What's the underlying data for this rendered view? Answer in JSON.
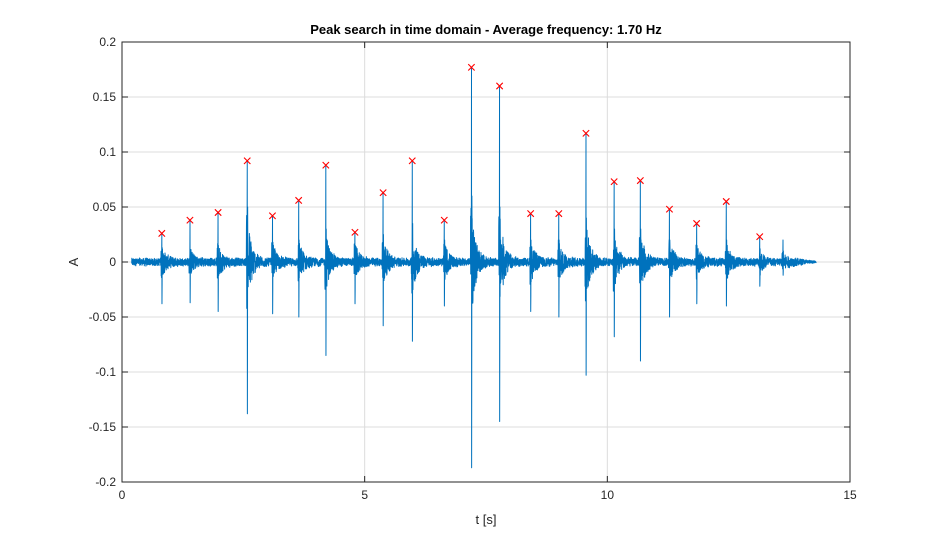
{
  "chart_data": {
    "type": "line",
    "title": "Peak search in time domain - Average frequency: 1.70 Hz",
    "xlabel": "t [s]",
    "ylabel": "A",
    "xlim": [
      0,
      15
    ],
    "ylim": [
      -0.2,
      0.2
    ],
    "grid": true,
    "xticks": [
      0,
      5,
      10,
      15
    ],
    "xtick_labels": [
      "0",
      "5",
      "10",
      "15"
    ],
    "yticks": [
      -0.2,
      -0.15,
      -0.1,
      -0.05,
      0,
      0.05,
      0.1,
      0.15,
      0.2
    ],
    "ytick_labels": [
      "-0.2",
      "-0.15",
      "-0.1",
      "-0.05",
      "0",
      "0.05",
      "0.1",
      "0.15",
      "0.2"
    ],
    "colors": {
      "signal": "#0072BD",
      "peaks": "#FF0000",
      "grid": "#DCDCDC",
      "axes": "#262626"
    },
    "series": [
      {
        "name": "signal",
        "kind": "line",
        "description_x_range": [
          0.2,
          14.3
        ],
        "bursts": [
          {
            "t": 0.82,
            "up": 0.026,
            "down": -0.038,
            "extra_up": 0.013,
            "extra_down": -0.02
          },
          {
            "t": 1.4,
            "up": 0.038,
            "down": -0.037,
            "extra_up": 0.01,
            "extra_down": -0.02
          },
          {
            "t": 1.98,
            "up": 0.045,
            "down": -0.045,
            "extra_up": 0.015,
            "extra_down": -0.025
          },
          {
            "t": 2.58,
            "up": 0.092,
            "down": -0.138,
            "extra_up": 0.05,
            "extra_down": -0.067
          },
          {
            "t": 3.1,
            "up": 0.042,
            "down": -0.047,
            "extra_up": 0.018,
            "extra_down": -0.025
          },
          {
            "t": 3.64,
            "up": 0.056,
            "down": -0.05,
            "extra_up": 0.02,
            "extra_down": -0.03
          },
          {
            "t": 4.2,
            "up": 0.088,
            "down": -0.085,
            "extra_up": 0.03,
            "extra_down": -0.04
          },
          {
            "t": 4.8,
            "up": 0.027,
            "down": -0.038,
            "extra_up": 0.015,
            "extra_down": -0.025
          },
          {
            "t": 5.38,
            "up": 0.063,
            "down": -0.058,
            "extra_up": 0.025,
            "extra_down": -0.035
          },
          {
            "t": 5.98,
            "up": 0.092,
            "down": -0.072,
            "extra_up": 0.035,
            "extra_down": -0.045
          },
          {
            "t": 6.64,
            "up": 0.038,
            "down": -0.04,
            "extra_up": 0.02,
            "extra_down": -0.025
          },
          {
            "t": 7.2,
            "up": 0.177,
            "down": -0.187,
            "extra_up": 0.06,
            "extra_down": -0.08
          },
          {
            "t": 7.78,
            "up": 0.16,
            "down": -0.145,
            "extra_up": 0.05,
            "extra_down": -0.07
          },
          {
            "t": 8.42,
            "up": 0.044,
            "down": -0.045,
            "extra_up": 0.02,
            "extra_down": -0.03
          },
          {
            "t": 9.0,
            "up": 0.044,
            "down": -0.05,
            "extra_up": 0.02,
            "extra_down": -0.03
          },
          {
            "t": 9.56,
            "up": 0.117,
            "down": -0.103,
            "extra_up": 0.04,
            "extra_down": -0.06
          },
          {
            "t": 10.14,
            "up": 0.073,
            "down": -0.068,
            "extra_up": 0.03,
            "extra_down": -0.04
          },
          {
            "t": 10.68,
            "up": 0.074,
            "down": -0.09,
            "extra_up": 0.03,
            "extra_down": -0.05
          },
          {
            "t": 11.28,
            "up": 0.048,
            "down": -0.05,
            "extra_up": 0.02,
            "extra_down": -0.03
          },
          {
            "t": 11.84,
            "up": 0.035,
            "down": -0.038,
            "extra_up": 0.015,
            "extra_down": -0.025
          },
          {
            "t": 12.45,
            "up": 0.055,
            "down": -0.04,
            "extra_up": 0.02,
            "extra_down": -0.025
          },
          {
            "t": 13.14,
            "up": 0.023,
            "down": -0.022,
            "extra_up": 0.012,
            "extra_down": -0.015
          },
          {
            "t": 13.62,
            "up": 0.02,
            "down": -0.012,
            "extra_up": 0.01,
            "extra_down": -0.008
          }
        ]
      },
      {
        "name": "peaks",
        "kind": "scatter",
        "marker": "x",
        "x": [
          0.82,
          1.4,
          1.98,
          2.58,
          3.1,
          3.64,
          4.2,
          4.8,
          5.38,
          5.98,
          6.64,
          7.2,
          7.78,
          8.42,
          9.0,
          9.56,
          10.14,
          10.68,
          11.28,
          11.84,
          12.45,
          13.14
        ],
        "y": [
          0.026,
          0.038,
          0.045,
          0.092,
          0.042,
          0.056,
          0.088,
          0.027,
          0.063,
          0.092,
          0.038,
          0.177,
          0.16,
          0.044,
          0.044,
          0.117,
          0.073,
          0.074,
          0.048,
          0.035,
          0.055,
          0.023
        ]
      }
    ]
  }
}
